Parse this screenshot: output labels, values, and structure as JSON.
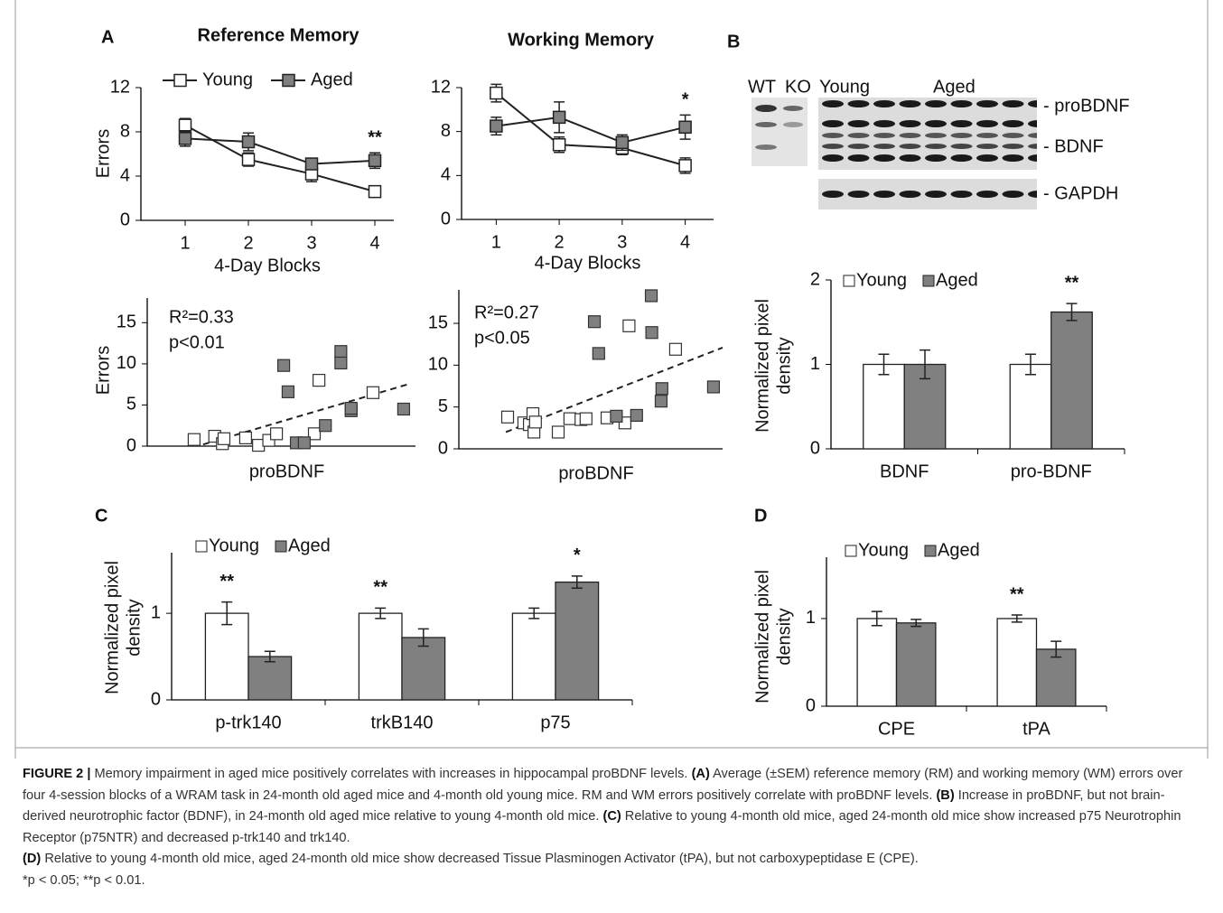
{
  "panels": [
    "A",
    "B",
    "C",
    "D"
  ],
  "blot": {
    "lanes": [
      "WT",
      "KO",
      "Young",
      "Aged"
    ],
    "bands": [
      "- proBDNF",
      "- BDNF",
      "- GAPDH"
    ]
  },
  "chart_data": [
    {
      "type": "line",
      "title": "Reference Memory",
      "x": [
        1,
        2,
        3,
        4
      ],
      "xlabel": "4-Day Blocks",
      "ylabel": "Errors",
      "xlim": [
        0.3,
        4.3
      ],
      "xticks": [
        1,
        2,
        3,
        4
      ],
      "ylim": [
        0,
        12
      ],
      "yticks": [
        0,
        4,
        8,
        12
      ],
      "series": [
        {
          "name": "Young",
          "color": "#ffffff",
          "values": [
            8.6,
            5.5,
            4.2,
            2.6
          ],
          "errors": [
            0.6,
            0.6,
            0.7,
            0.4
          ]
        },
        {
          "name": "Aged",
          "color": "#808080",
          "values": [
            7.4,
            7.1,
            5.1,
            5.4
          ],
          "errors": [
            0.7,
            0.8,
            0.5,
            0.7
          ]
        }
      ],
      "significance": [
        null,
        null,
        null,
        "**"
      ]
    },
    {
      "type": "line",
      "title": "Working Memory",
      "x": [
        1,
        2,
        3,
        4
      ],
      "xlabel": "4-Day Blocks",
      "xlim": [
        0.45,
        4.45
      ],
      "xticks": [
        1,
        2,
        3,
        4
      ],
      "ylim": [
        0,
        12
      ],
      "yticks": [
        0,
        4,
        8,
        12
      ],
      "series": [
        {
          "color": "#ffffff",
          "values": [
            11.5,
            6.8,
            6.5,
            4.9
          ],
          "errors": [
            0.8,
            0.7,
            0.6,
            0.7
          ]
        },
        {
          "color": "#808080",
          "values": [
            8.5,
            9.3,
            7.0,
            8.4
          ],
          "errors": [
            0.8,
            1.4,
            0.7,
            1.1
          ]
        }
      ],
      "significance": [
        null,
        null,
        null,
        "*"
      ]
    },
    {
      "type": "scatter",
      "xlabel": "proBDNF",
      "ylabel": "Errors",
      "xlim": [
        0,
        100
      ],
      "ylim": [
        0,
        18
      ],
      "yticks": [
        0,
        5,
        10,
        15
      ],
      "notes": [
        "R²=0.33",
        "p<0.01"
      ],
      "series": [
        {
          "color": "#ffffff",
          "x": [
            14,
            22,
            25,
            25.6,
            34,
            39,
            43,
            46,
            60.7,
            62.5,
            83.5
          ],
          "values": [
            0.8,
            1.2,
            0.3,
            0.9,
            1.0,
            0.1,
            0.7,
            1.5,
            1.5,
            8.0,
            6.5
          ]
        },
        {
          "color": "#808080",
          "x": [
            48.8,
            50.5,
            53.7,
            56.8,
            65,
            71,
            71,
            75,
            75,
            95.4
          ],
          "values": [
            9.8,
            6.6,
            0.4,
            0.4,
            2.5,
            11.5,
            10.1,
            4.3,
            4.6,
            4.5
          ]
        }
      ],
      "trend": {
        "x": [
          17.5,
          98
        ],
        "values": [
          0.2,
          7.6
        ]
      }
    },
    {
      "type": "scatter",
      "xlabel": "proBDNF",
      "xlim": [
        0,
        100
      ],
      "ylim": [
        0,
        19
      ],
      "yticks": [
        0,
        5,
        10,
        15
      ],
      "notes": [
        "R²=0.27",
        "p<0.05"
      ],
      "series": [
        {
          "color": "#ffffff",
          "x": [
            15,
            21.4,
            23.6,
            25,
            25.4,
            26,
            35,
            39.6,
            44,
            46,
            54.3,
            61.4,
            63,
            81.4
          ],
          "values": [
            3.8,
            3.1,
            2.9,
            4.2,
            2.0,
            3.2,
            2.0,
            3.6,
            3.5,
            3.6,
            3.7,
            3.1,
            14.7,
            11.9
          ]
        },
        {
          "color": "#808080",
          "x": [
            49.3,
            51,
            58,
            66,
            71.8,
            72,
            76,
            75.7,
            96.4
          ],
          "values": [
            15.2,
            11.4,
            3.9,
            4.0,
            18.3,
            13.9,
            7.2,
            5.7,
            7.4
          ]
        }
      ],
      "trend": {
        "x": [
          14.3,
          100
        ],
        "values": [
          2.0,
          12.1
        ]
      }
    },
    {
      "type": "bar",
      "categories": [
        "BDNF",
        "pro-BDNF"
      ],
      "ylabel": [
        "Normalized pixel",
        "density"
      ],
      "ylim": [
        0,
        2
      ],
      "yticks": [
        0,
        1,
        2
      ],
      "series": [
        {
          "name": "Young",
          "color": "#ffffff",
          "values": [
            1,
            1
          ],
          "errors": [
            0.12,
            0.12
          ]
        },
        {
          "name": "Aged",
          "color": "#808080",
          "values": [
            1,
            1.62
          ],
          "errors": [
            0.17,
            0.1
          ]
        }
      ],
      "significance": [
        null,
        "**"
      ]
    },
    {
      "type": "bar",
      "categories": [
        "p-trk140",
        "trkB140",
        "p75"
      ],
      "ylabel": [
        "Normalized pixel",
        "density"
      ],
      "ylim": [
        0,
        1.7
      ],
      "yticks": [
        0,
        1
      ],
      "series": [
        {
          "name": "Young",
          "color": "#ffffff",
          "values": [
            1,
            1,
            1
          ],
          "errors": [
            0.13,
            0.06,
            0.06
          ]
        },
        {
          "name": "Aged",
          "color": "#808080",
          "values": [
            0.5,
            0.72,
            1.36
          ],
          "errors": [
            0.06,
            0.1,
            0.07
          ]
        }
      ],
      "significance": [
        "**",
        "**",
        "*"
      ]
    },
    {
      "type": "bar",
      "categories": [
        "CPE",
        "tPA"
      ],
      "ylabel": [
        "Normalized pixel",
        "density"
      ],
      "ylim": [
        0,
        1.7
      ],
      "yticks": [
        0,
        1
      ],
      "series": [
        {
          "name": "Young",
          "color": "#ffffff",
          "values": [
            1,
            1
          ],
          "errors": [
            0.08,
            0.04
          ]
        },
        {
          "name": "Aged",
          "color": "#808080",
          "values": [
            0.95,
            0.65
          ],
          "errors": [
            0.04,
            0.09
          ]
        }
      ],
      "significance": [
        null,
        "**"
      ]
    }
  ],
  "caption": {
    "label": "FIGURE 2 |",
    "intro": "Memory impairment in aged mice positively correlates with increases in hippocampal proBDNF levels.",
    "items": [
      {
        "tag": "(A)",
        "text": "Average (±SEM) reference memory (RM) and working memory (WM) errors over four 4-session blocks of a WRAM task in 24-month old aged mice and 4-month old young mice. RM and WM errors positively correlate with proBDNF levels."
      },
      {
        "tag": "(B)",
        "text": "Increase in proBDNF, but not brain-derived neurotrophic factor (BDNF), in 24-month old aged mice relative to young 4-month old mice."
      },
      {
        "tag": "(C)",
        "text": "Relative to young 4-month old mice, aged 24-month old mice show increased p75 Neurotrophin Receptor (p75NTR) and decreased p-trk140 and trk140."
      },
      {
        "tag": "(D)",
        "text": "Relative to young 4-month old mice, aged 24-month old mice show decreased Tissue Plasminogen Activator (tPA), but not carboxypeptidase E (CPE)."
      }
    ],
    "footnote": "*p < 0.05; **p < 0.01."
  }
}
